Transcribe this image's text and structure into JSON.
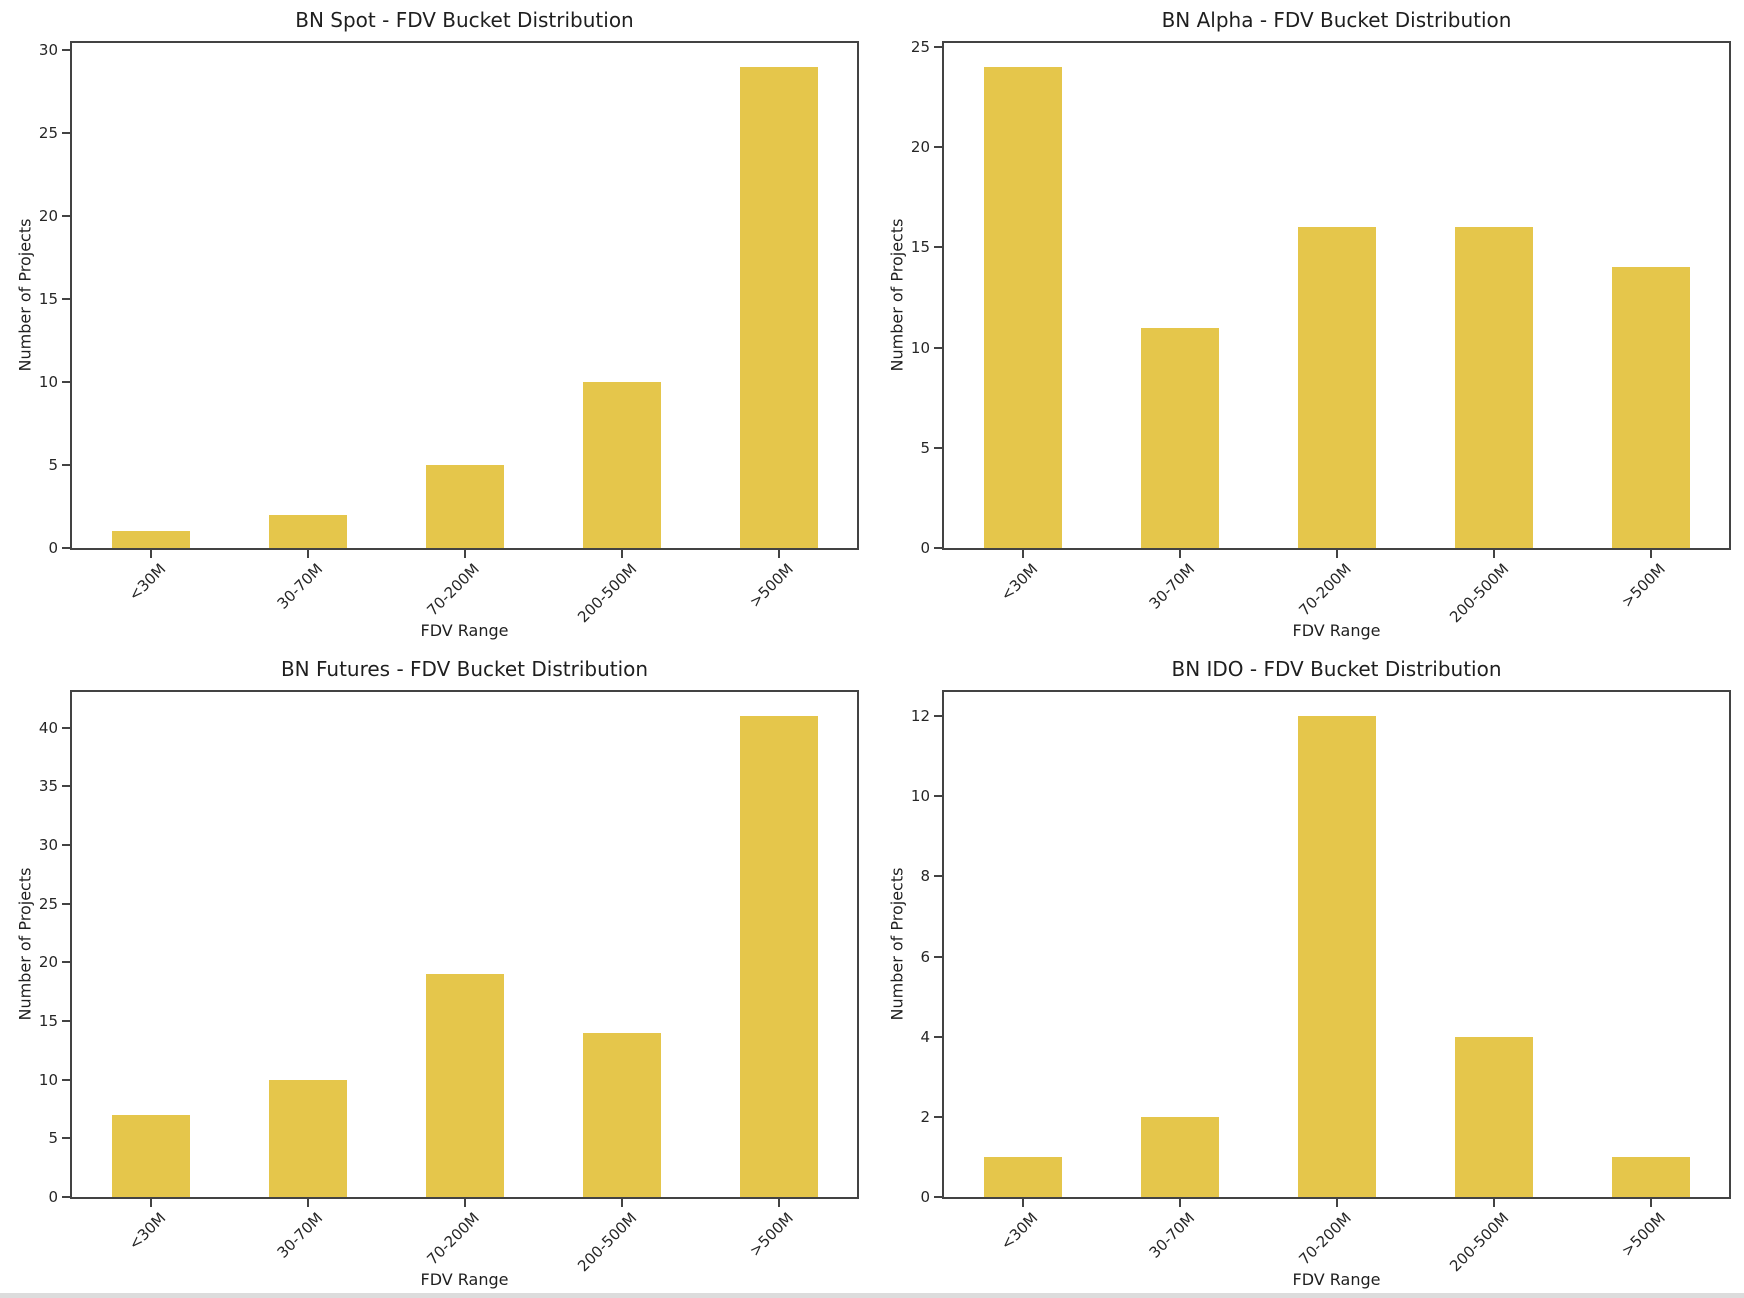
{
  "page": {
    "background_color": "#ffffff",
    "bottom_strip_color": "#dcdcdc",
    "bar_color": "#E5C64B",
    "axis_color": "#434343",
    "text_color": "#1f1f1f"
  },
  "chart_data": [
    {
      "type": "bar",
      "title": "BN Spot - FDV Bucket Distribution",
      "categories": [
        "<30M",
        "30-70M",
        "70-200M",
        "200-500M",
        ">500M"
      ],
      "values": [
        1,
        2,
        5,
        10,
        29
      ],
      "xlabel": "FDV Range",
      "ylabel": "Number of Projects",
      "yticks": [
        0,
        5,
        10,
        15,
        20,
        25,
        30
      ],
      "ylim": [
        0,
        30.45
      ],
      "grid": false,
      "legend": "none"
    },
    {
      "type": "bar",
      "title": "BN Alpha - FDV Bucket Distribution",
      "categories": [
        "<30M",
        "30-70M",
        "70-200M",
        "200-500M",
        ">500M"
      ],
      "values": [
        24,
        11,
        16,
        16,
        14
      ],
      "xlabel": "FDV Range",
      "ylabel": "Number of Projects",
      "yticks": [
        0,
        5,
        10,
        15,
        20,
        25
      ],
      "ylim": [
        0,
        25.2
      ],
      "grid": false,
      "legend": "none"
    },
    {
      "type": "bar",
      "title": "BN Futures - FDV Bucket Distribution",
      "categories": [
        "<30M",
        "30-70M",
        "70-200M",
        "200-500M",
        ">500M"
      ],
      "values": [
        7,
        10,
        19,
        14,
        41
      ],
      "xlabel": "FDV Range",
      "ylabel": "Number of Projects",
      "yticks": [
        0,
        5,
        10,
        15,
        20,
        25,
        30,
        35,
        40
      ],
      "ylim": [
        0,
        43.05
      ],
      "grid": false,
      "legend": "none"
    },
    {
      "type": "bar",
      "title": "BN IDO - FDV Bucket Distribution",
      "categories": [
        "<30M",
        "30-70M",
        "70-200M",
        "200-500M",
        ">500M"
      ],
      "values": [
        1,
        2,
        12,
        4,
        1
      ],
      "xlabel": "FDV Range",
      "ylabel": "Number of Projects",
      "yticks": [
        0,
        2,
        4,
        6,
        8,
        10,
        12
      ],
      "ylim": [
        0,
        12.6
      ],
      "grid": false,
      "legend": "none"
    }
  ]
}
